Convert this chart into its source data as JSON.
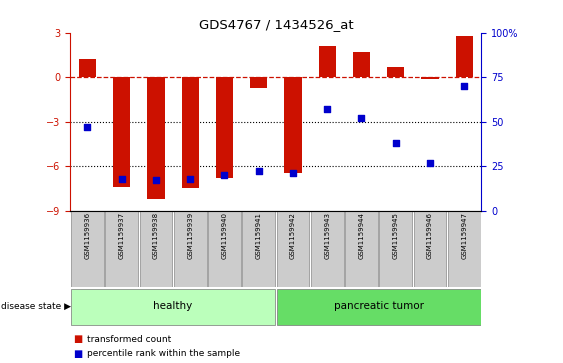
{
  "title": "GDS4767 / 1434526_at",
  "samples": [
    "GSM1159936",
    "GSM1159937",
    "GSM1159938",
    "GSM1159939",
    "GSM1159940",
    "GSM1159941",
    "GSM1159942",
    "GSM1159943",
    "GSM1159944",
    "GSM1159945",
    "GSM1159946",
    "GSM1159947"
  ],
  "transformed_count": [
    1.2,
    -7.4,
    -8.2,
    -7.5,
    -6.8,
    -0.7,
    -6.5,
    2.1,
    1.7,
    0.7,
    -0.1,
    2.8
  ],
  "percentile_rank": [
    47,
    18,
    17,
    18,
    20,
    22,
    21,
    57,
    52,
    38,
    27,
    70
  ],
  "group_labels": [
    "healthy",
    "pancreatic tumor"
  ],
  "group_starts": [
    0,
    6
  ],
  "group_ends": [
    6,
    12
  ],
  "group_colors": [
    "#bbffbb",
    "#66dd66"
  ],
  "ylim": [
    -9,
    3
  ],
  "yticks": [
    -9,
    -6,
    -3,
    0,
    3
  ],
  "bar_color": "#cc1100",
  "dot_color": "#0000cc",
  "hline_color": "#cc1100",
  "bg_color": "#ffffff",
  "label_bg_color": "#cccccc",
  "disease_state_label": "disease state",
  "legend_bar_label": "transformed count",
  "legend_dot_label": "percentile rank within the sample",
  "bar_width": 0.5
}
